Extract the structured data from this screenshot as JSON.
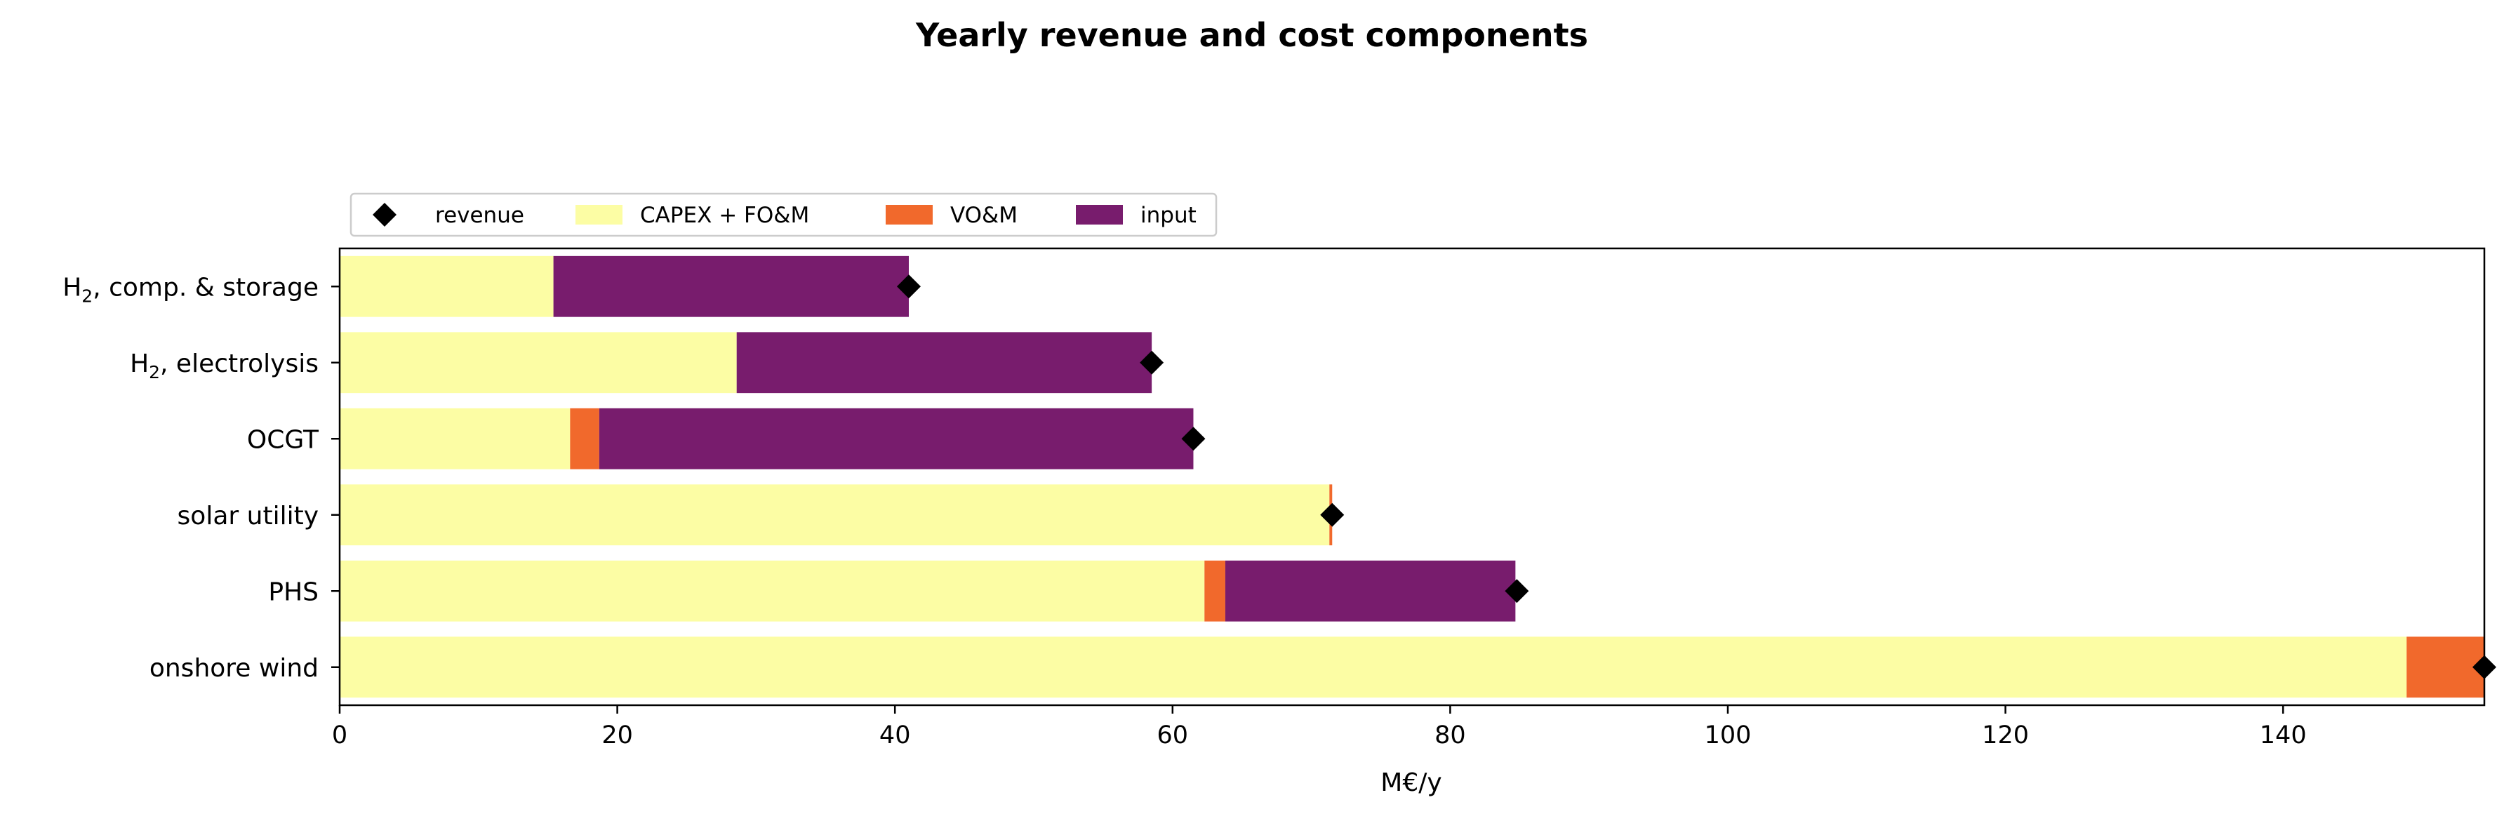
{
  "chart_data": {
    "type": "bar",
    "orientation": "horizontal",
    "stacked": true,
    "title": "Yearly revenue and cost components",
    "xlabel": "M€/y",
    "ylabel": "",
    "xlim": [
      0,
      154.5
    ],
    "xticks": [
      0,
      20,
      40,
      60,
      80,
      100,
      120,
      140
    ],
    "grid": false,
    "legend_position": "top-left, above plot",
    "categories": [
      {
        "base": "H",
        "sub": "2",
        "rest": ", comp. & storage"
      },
      {
        "base": "H",
        "sub": "2",
        "rest": ", electrolysis"
      },
      {
        "base": "OCGT",
        "sub": "",
        "rest": ""
      },
      {
        "base": "solar utility",
        "sub": "",
        "rest": ""
      },
      {
        "base": "PHS",
        "sub": "",
        "rest": ""
      },
      {
        "base": "onshore wind",
        "sub": "",
        "rest": ""
      }
    ],
    "series": [
      {
        "name": "CAPEX + FO&M",
        "color": "#fcfda4",
        "values": [
          15.4,
          28.6,
          16.6,
          71.3,
          62.3,
          148.9
        ]
      },
      {
        "name": "VO&M",
        "color": "#f1692c",
        "values": [
          0.0,
          0.0,
          2.1,
          0.2,
          1.5,
          5.6
        ]
      },
      {
        "name": "input",
        "color": "#781c6d",
        "values": [
          25.6,
          29.9,
          42.8,
          0.0,
          20.9,
          0.0
        ]
      }
    ],
    "revenue": {
      "name": "revenue",
      "marker": "diamond",
      "color": "#000000",
      "values": [
        41.0,
        58.5,
        61.5,
        71.5,
        84.8,
        154.5
      ]
    }
  }
}
